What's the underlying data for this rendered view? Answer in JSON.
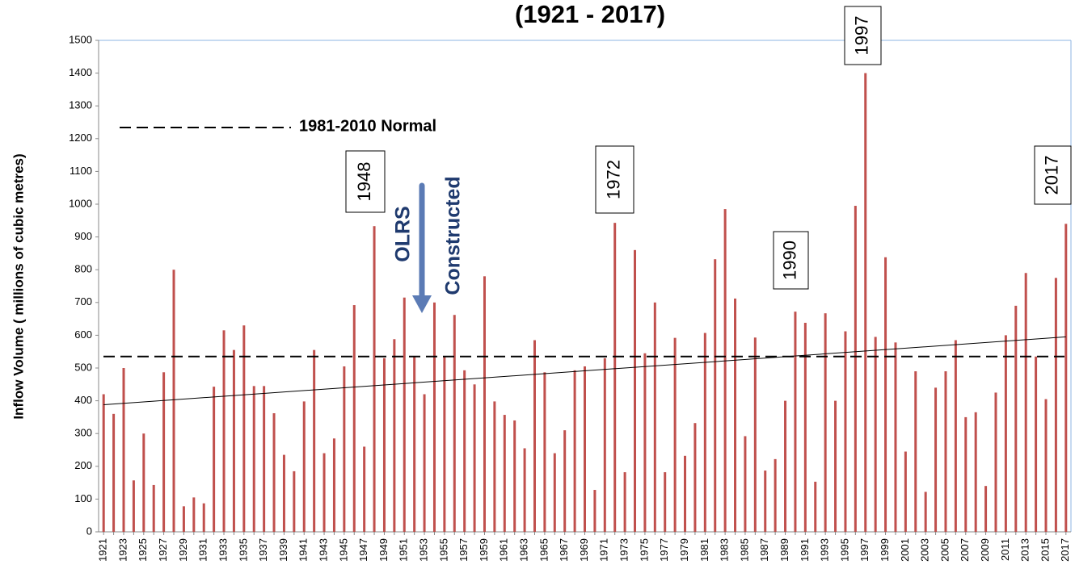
{
  "chart_data": {
    "type": "bar",
    "title": "(1921 - 2017)",
    "y_label": "Inflow Volume ( millions of cubic metres)",
    "categories": [
      "1921",
      null,
      "1923",
      null,
      "1925",
      null,
      "1927",
      null,
      "1929",
      null,
      "1931",
      null,
      "1933",
      null,
      "1935",
      null,
      "1937",
      null,
      "1939",
      null,
      "1941",
      null,
      "1943",
      null,
      "1945",
      null,
      "1947",
      null,
      "1949",
      null,
      "1951",
      null,
      "1953",
      null,
      "1955",
      null,
      "1957",
      null,
      "1959",
      null,
      "1961",
      null,
      "1963",
      null,
      "1965",
      null,
      "1967",
      null,
      "1969",
      null,
      "1971",
      null,
      "1973",
      null,
      "1975",
      null,
      "1977",
      null,
      "1979",
      null,
      "1981",
      null,
      "1983",
      null,
      "1985",
      null,
      "1987",
      null,
      "1989",
      null,
      "1991",
      null,
      "1993",
      null,
      "1995",
      null,
      "1997",
      null,
      "1999",
      null,
      "2001",
      null,
      "2003",
      null,
      "2005",
      null,
      "2007",
      null,
      "2009",
      null,
      "2011",
      null,
      "2013",
      null,
      "2015",
      null,
      "2017"
    ],
    "values": [
      420,
      360,
      500,
      157,
      300,
      143,
      487,
      800,
      78,
      105,
      87,
      443,
      615,
      555,
      630,
      445,
      445,
      362,
      235,
      185,
      398,
      555,
      240,
      285,
      505,
      692,
      260,
      933,
      530,
      588,
      715,
      535,
      420,
      700,
      535,
      662,
      493,
      450,
      780,
      398,
      357,
      340,
      255,
      585,
      487,
      240,
      310,
      493,
      505,
      128,
      530,
      943,
      182,
      860,
      545,
      700,
      182,
      592,
      232,
      332,
      607,
      832,
      985,
      712,
      292,
      593,
      187,
      222,
      400,
      672,
      638,
      153,
      667,
      400,
      612,
      995,
      1400,
      595,
      838,
      578,
      245,
      490,
      122,
      440,
      490,
      585,
      350,
      365,
      140,
      425,
      600,
      690,
      790,
      535,
      405,
      775,
      940
    ],
    "color": "#c0504d",
    "ylim": [
      0,
      1500
    ],
    "yticks": [
      0,
      100,
      200,
      300,
      400,
      500,
      600,
      700,
      800,
      900,
      1000,
      1100,
      1200,
      1300,
      1400,
      1500
    ],
    "grid": false,
    "normal": {
      "label": "1981-2010 Normal",
      "value": 535
    },
    "trend": {
      "values": [
        388,
        595
      ]
    },
    "annotations": [
      "1948",
      "1972",
      "1990",
      "1997",
      "2017"
    ],
    "arrow_text": [
      "OLRS",
      "Constructed"
    ]
  }
}
